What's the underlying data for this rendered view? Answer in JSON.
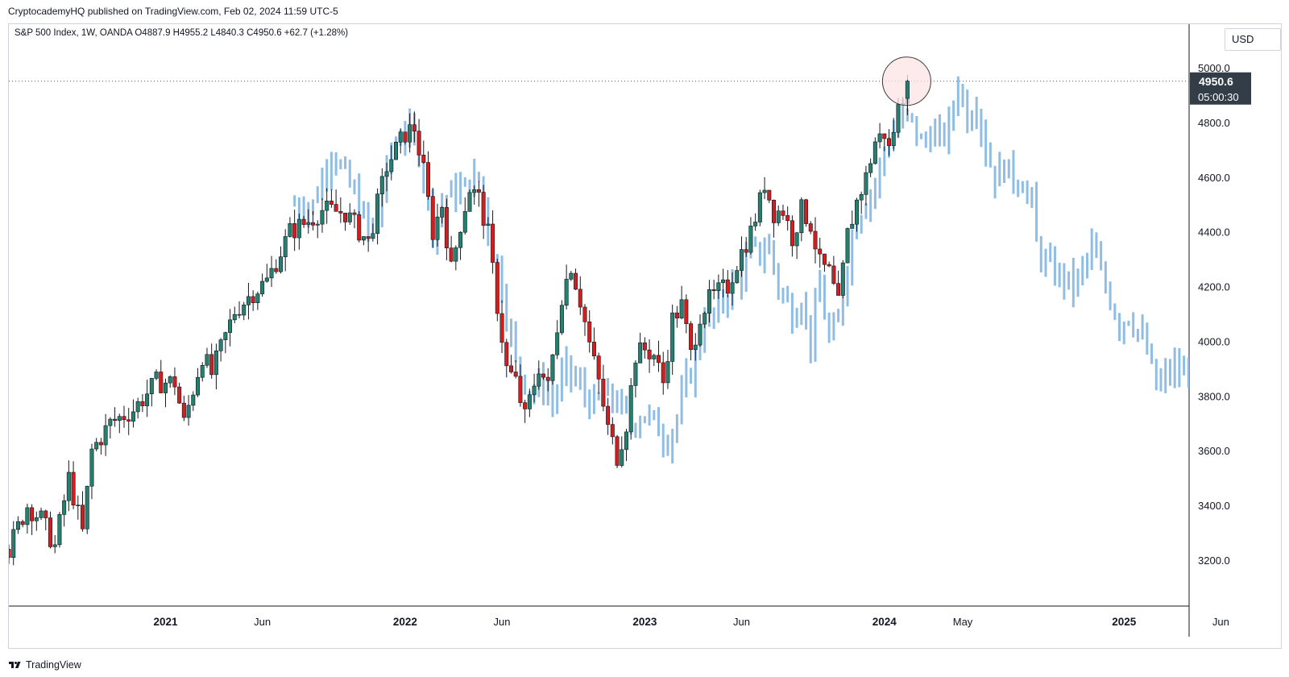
{
  "header": {
    "published_text": "CryptocademyHQ published on TradingView.com, Feb 02, 2024 11:59 UTC-5"
  },
  "legend": {
    "text": "S&P 500 Index, 1W, OANDA  O4887.9  H4955.2  L4840.3  C4950.6  +62.7 (+1.28%)"
  },
  "price_scale": {
    "currency": "USD",
    "last_price_label": "4950.6",
    "countdown_label": "05:00:30"
  },
  "footer": {
    "brand": "TradingView"
  },
  "colors": {
    "up": "#26806f",
    "down": "#d11f1f",
    "projection": "#8fbde3",
    "circle_fill": "#fce4e6",
    "circle_stroke": "#3a3a3a",
    "axis": "#131722",
    "price_label_bg": "#333d47"
  },
  "chart_data": {
    "type": "candlestick",
    "title": "S&P 500 Index, 1W, OANDA",
    "ylim": [
      3000,
      5150
    ],
    "y_ticks": [
      "5000.0",
      "4800.0",
      "4600.0",
      "4400.0",
      "4200.0",
      "4000.0",
      "3800.0",
      "3600.0",
      "3400.0",
      "3200.0"
    ],
    "y_tick_values": [
      5000,
      4800,
      4600,
      4400,
      4200,
      4000,
      3800,
      3600,
      3400,
      3200
    ],
    "x_ticks": [
      {
        "label": "2021",
        "week": 34,
        "bold": true
      },
      {
        "label": "Jun",
        "week": 55,
        "bold": false
      },
      {
        "label": "2022",
        "week": 86,
        "bold": true
      },
      {
        "label": "Jun",
        "week": 107,
        "bold": false
      },
      {
        "label": "2023",
        "week": 138,
        "bold": true
      },
      {
        "label": "Jun",
        "week": 159,
        "bold": false
      },
      {
        "label": "2024",
        "week": 190,
        "bold": true
      },
      {
        "label": "May",
        "week": 207,
        "bold": false
      },
      {
        "label": "2025",
        "week": 242,
        "bold": true
      },
      {
        "label": "Jun",
        "week": 263,
        "bold": false
      }
    ],
    "last_close": 4950.6,
    "candle_anchors": [
      [
        0,
        3240
      ],
      [
        4,
        3400
      ],
      [
        7,
        3350
      ],
      [
        10,
        3250
      ],
      [
        13,
        3500
      ],
      [
        16,
        3300
      ],
      [
        18,
        3600
      ],
      [
        22,
        3700
      ],
      [
        27,
        3750
      ],
      [
        32,
        3850
      ],
      [
        36,
        3850
      ],
      [
        38,
        3700
      ],
      [
        42,
        3950
      ],
      [
        44,
        3880
      ],
      [
        49,
        4110
      ],
      [
        53,
        4180
      ],
      [
        56,
        4220
      ],
      [
        61,
        4400
      ],
      [
        65,
        4440
      ],
      [
        68,
        4480
      ],
      [
        73,
        4470
      ],
      [
        78,
        4360
      ],
      [
        82,
        4640
      ],
      [
        86,
        4760
      ],
      [
        88,
        4780
      ],
      [
        90,
        4620
      ],
      [
        92,
        4400
      ],
      [
        94,
        4500
      ],
      [
        96,
        4260
      ],
      [
        98,
        4430
      ],
      [
        100,
        4560
      ],
      [
        102,
        4520
      ],
      [
        104,
        4390
      ],
      [
        106,
        4130
      ],
      [
        108,
        3900
      ],
      [
        110,
        3850
      ],
      [
        112,
        3720
      ],
      [
        115,
        3910
      ],
      [
        117,
        3830
      ],
      [
        120,
        4170
      ],
      [
        122,
        4280
      ],
      [
        124,
        4150
      ],
      [
        126,
        3990
      ],
      [
        128,
        3850
      ],
      [
        130,
        3680
      ],
      [
        132,
        3580
      ],
      [
        134,
        3700
      ],
      [
        136,
        3950
      ],
      [
        138,
        3970
      ],
      [
        140,
        3950
      ],
      [
        142,
        3850
      ],
      [
        144,
        4080
      ],
      [
        146,
        4130
      ],
      [
        148,
        3950
      ],
      [
        150,
        4100
      ],
      [
        152,
        4150
      ],
      [
        154,
        4180
      ],
      [
        156,
        4200
      ],
      [
        158,
        4290
      ],
      [
        161,
        4400
      ],
      [
        163,
        4510
      ],
      [
        164,
        4580
      ],
      [
        166,
        4470
      ],
      [
        168,
        4480
      ],
      [
        170,
        4380
      ],
      [
        172,
        4480
      ],
      [
        174,
        4430
      ],
      [
        176,
        4280
      ],
      [
        178,
        4250
      ],
      [
        180,
        4130
      ],
      [
        182,
        4390
      ],
      [
        184,
        4510
      ],
      [
        186,
        4600
      ],
      [
        188,
        4730
      ],
      [
        190,
        4760
      ],
      [
        191,
        4700
      ],
      [
        193,
        4850
      ],
      [
        195,
        4950.6
      ]
    ],
    "projection_anchors": [
      [
        62,
        4500
      ],
      [
        66,
        4500
      ],
      [
        70,
        4700
      ],
      [
        73,
        4600
      ],
      [
        76,
        4500
      ],
      [
        78,
        4400
      ],
      [
        80,
        4460
      ],
      [
        83,
        4700
      ],
      [
        86,
        4780
      ],
      [
        89,
        4700
      ],
      [
        92,
        4420
      ],
      [
        95,
        4530
      ],
      [
        99,
        4560
      ],
      [
        102,
        4600
      ],
      [
        104,
        4420
      ],
      [
        107,
        4200
      ],
      [
        110,
        3920
      ],
      [
        113,
        3820
      ],
      [
        116,
        3840
      ],
      [
        118,
        3780
      ],
      [
        121,
        3900
      ],
      [
        124,
        3830
      ],
      [
        127,
        3760
      ],
      [
        129,
        3800
      ],
      [
        132,
        3780
      ],
      [
        135,
        3700
      ],
      [
        138,
        3740
      ],
      [
        141,
        3680
      ],
      [
        143,
        3640
      ],
      [
        145,
        3720
      ],
      [
        147,
        3850
      ],
      [
        149,
        3930
      ],
      [
        151,
        4100
      ],
      [
        153,
        4080
      ],
      [
        155,
        4150
      ],
      [
        157,
        4210
      ],
      [
        159,
        4240
      ],
      [
        161,
        4330
      ],
      [
        163,
        4320
      ],
      [
        165,
        4350
      ],
      [
        167,
        4200
      ],
      [
        170,
        4100
      ],
      [
        172,
        4160
      ],
      [
        174,
        4000
      ],
      [
        176,
        4200
      ],
      [
        178,
        4000
      ],
      [
        180,
        4060
      ],
      [
        182,
        4300
      ],
      [
        184,
        4450
      ],
      [
        186,
        4520
      ],
      [
        188,
        4570
      ],
      [
        190,
        4700
      ],
      [
        192,
        4760
      ],
      [
        194,
        4820
      ],
      [
        196,
        4800
      ],
      [
        198,
        4720
      ],
      [
        200,
        4760
      ],
      [
        202,
        4740
      ],
      [
        204,
        4780
      ],
      [
        206,
        4950
      ],
      [
        208,
        4820
      ],
      [
        210,
        4880
      ],
      [
        212,
        4700
      ],
      [
        214,
        4600
      ],
      [
        216,
        4640
      ],
      [
        218,
        4600
      ],
      [
        220,
        4580
      ],
      [
        222,
        4500
      ],
      [
        223,
        4350
      ],
      [
        225,
        4280
      ],
      [
        227,
        4250
      ],
      [
        229,
        4230
      ],
      [
        231,
        4200
      ],
      [
        233,
        4260
      ],
      [
        235,
        4340
      ],
      [
        237,
        4240
      ],
      [
        239,
        4160
      ],
      [
        241,
        4060
      ],
      [
        243,
        4100
      ],
      [
        245,
        4040
      ],
      [
        247,
        3960
      ],
      [
        249,
        3830
      ],
      [
        251,
        3870
      ],
      [
        253,
        3900
      ],
      [
        255,
        3870
      ],
      [
        257,
        4010
      ],
      [
        259,
        4060
      ],
      [
        261,
        4080
      ],
      [
        263,
        4040
      ],
      [
        265,
        3980
      ]
    ]
  }
}
